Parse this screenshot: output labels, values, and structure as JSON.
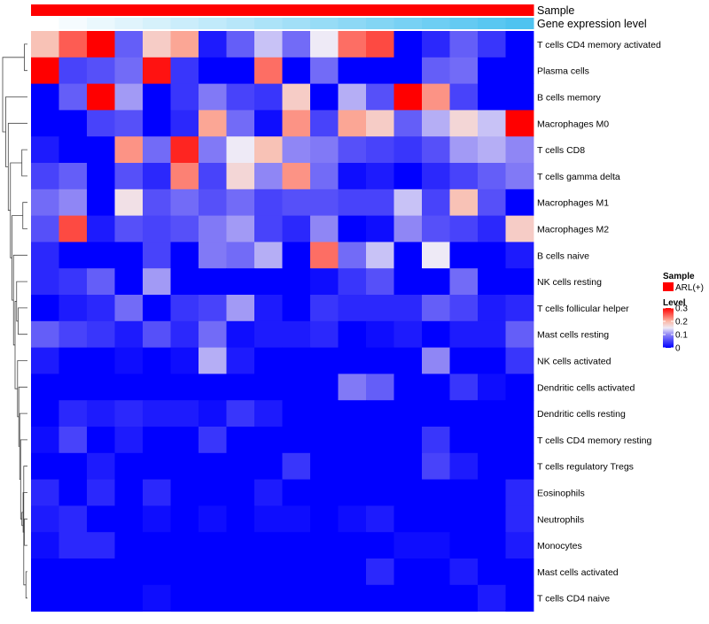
{
  "chart_data": {
    "type": "heatmap",
    "annotations": [
      {
        "label": "Sample",
        "kind": "categorical",
        "color": "#ff0000"
      },
      {
        "label": "Gene expression level",
        "kind": "continuous",
        "from_color": "#ffffff",
        "to_color": "#4fc3f0"
      }
    ],
    "rows": [
      "T cells CD4 memory activated",
      "Plasma cells",
      "B cells memory",
      "Macrophages M0",
      "T cells CD8",
      "T cells gamma delta",
      "Macrophages M1",
      "Macrophages M2",
      "B cells naive",
      "NK cells resting",
      "T cells follicular helper",
      "Mast cells resting",
      "NK cells activated",
      "Dendritic cells activated",
      "Dendritic cells resting",
      "T cells CD4 memory resting",
      "T cells regulatory  Tregs",
      "Eosinophils",
      "Neutrophils",
      "Monocytes",
      "Mast cells activated",
      "T cells CD4 naive"
    ],
    "columns": 18,
    "values": [
      [
        0.19,
        0.25,
        0.3,
        0.07,
        0.18,
        0.21,
        0.02,
        0.07,
        0.13,
        0.08,
        0.15,
        0.24,
        0.26,
        0.0,
        0.03,
        0.07,
        0.04,
        0.0
      ],
      [
        0.3,
        0.05,
        0.06,
        0.08,
        0.29,
        0.04,
        0.0,
        0.0,
        0.24,
        0.0,
        0.08,
        0.0,
        0.0,
        0.0,
        0.07,
        0.08,
        0.0,
        0.0
      ],
      [
        0.0,
        0.07,
        0.3,
        0.11,
        0.0,
        0.04,
        0.09,
        0.05,
        0.04,
        0.18,
        0.0,
        0.12,
        0.06,
        0.3,
        0.22,
        0.05,
        0.0,
        0.0
      ],
      [
        0.0,
        0.0,
        0.05,
        0.06,
        0.0,
        0.03,
        0.21,
        0.08,
        0.01,
        0.22,
        0.05,
        0.21,
        0.18,
        0.07,
        0.12,
        0.17,
        0.13,
        0.3
      ],
      [
        0.02,
        0.0,
        0.0,
        0.22,
        0.08,
        0.28,
        0.09,
        0.15,
        0.19,
        0.1,
        0.09,
        0.06,
        0.05,
        0.04,
        0.06,
        0.11,
        0.12,
        0.1
      ],
      [
        0.05,
        0.07,
        0.0,
        0.06,
        0.03,
        0.23,
        0.05,
        0.17,
        0.1,
        0.22,
        0.08,
        0.01,
        0.02,
        0.0,
        0.03,
        0.05,
        0.07,
        0.09
      ],
      [
        0.08,
        0.1,
        0.0,
        0.16,
        0.06,
        0.08,
        0.06,
        0.08,
        0.05,
        0.06,
        0.06,
        0.05,
        0.05,
        0.13,
        0.05,
        0.19,
        0.06,
        0.0
      ],
      [
        0.06,
        0.26,
        0.02,
        0.06,
        0.05,
        0.06,
        0.09,
        0.11,
        0.05,
        0.03,
        0.1,
        0.0,
        0.01,
        0.1,
        0.06,
        0.05,
        0.03,
        0.18
      ],
      [
        0.03,
        0.0,
        0.0,
        0.0,
        0.05,
        0.0,
        0.09,
        0.08,
        0.12,
        0.0,
        0.24,
        0.08,
        0.13,
        0.0,
        0.15,
        0.0,
        0.0,
        0.02
      ],
      [
        0.03,
        0.04,
        0.07,
        0.0,
        0.11,
        0.0,
        0.0,
        0.0,
        0.0,
        0.0,
        0.01,
        0.04,
        0.06,
        0.0,
        0.0,
        0.08,
        0.0,
        0.0
      ],
      [
        0.0,
        0.02,
        0.03,
        0.08,
        0.0,
        0.04,
        0.05,
        0.11,
        0.02,
        0.0,
        0.04,
        0.03,
        0.03,
        0.03,
        0.07,
        0.05,
        0.02,
        0.03
      ],
      [
        0.07,
        0.05,
        0.04,
        0.02,
        0.06,
        0.03,
        0.08,
        0.01,
        0.02,
        0.02,
        0.03,
        0.0,
        0.01,
        0.02,
        0.0,
        0.02,
        0.02,
        0.07
      ],
      [
        0.02,
        0.0,
        0.0,
        0.01,
        0.0,
        0.01,
        0.12,
        0.02,
        0.0,
        0.0,
        0.0,
        0.0,
        0.0,
        0.0,
        0.1,
        0.0,
        0.0,
        0.04
      ],
      [
        0.0,
        0.0,
        0.0,
        0.0,
        0.0,
        0.0,
        0.0,
        0.0,
        0.0,
        0.0,
        0.0,
        0.09,
        0.07,
        0.0,
        0.0,
        0.04,
        0.01,
        0.0
      ],
      [
        0.0,
        0.03,
        0.02,
        0.03,
        0.02,
        0.02,
        0.01,
        0.04,
        0.02,
        0.0,
        0.0,
        0.0,
        0.0,
        0.0,
        0.0,
        0.0,
        0.0,
        0.0
      ],
      [
        0.01,
        0.05,
        0.0,
        0.02,
        0.0,
        0.0,
        0.04,
        0.0,
        0.0,
        0.0,
        0.0,
        0.0,
        0.0,
        0.0,
        0.04,
        0.0,
        0.0,
        0.0
      ],
      [
        0.0,
        0.0,
        0.02,
        0.0,
        0.0,
        0.0,
        0.0,
        0.0,
        0.0,
        0.04,
        0.0,
        0.0,
        0.0,
        0.0,
        0.05,
        0.02,
        0.0,
        0.0
      ],
      [
        0.03,
        0.0,
        0.03,
        0.0,
        0.03,
        0.0,
        0.0,
        0.0,
        0.02,
        0.0,
        0.0,
        0.0,
        0.0,
        0.0,
        0.0,
        0.0,
        0.0,
        0.03
      ],
      [
        0.02,
        0.03,
        0.0,
        0.0,
        0.01,
        0.0,
        0.01,
        0.0,
        0.01,
        0.01,
        0.0,
        0.01,
        0.02,
        0.0,
        0.0,
        0.0,
        0.0,
        0.03
      ],
      [
        0.01,
        0.03,
        0.03,
        0.0,
        0.0,
        0.0,
        0.0,
        0.0,
        0.0,
        0.0,
        0.0,
        0.0,
        0.0,
        0.01,
        0.01,
        0.0,
        0.0,
        0.02
      ],
      [
        0.0,
        0.0,
        0.0,
        0.0,
        0.0,
        0.0,
        0.0,
        0.0,
        0.0,
        0.0,
        0.0,
        0.0,
        0.03,
        0.0,
        0.0,
        0.02,
        0.0,
        0.0
      ],
      [
        0.0,
        0.0,
        0.0,
        0.0,
        0.01,
        0.0,
        0.0,
        0.0,
        0.0,
        0.0,
        0.0,
        0.0,
        0.0,
        0.0,
        0.0,
        0.0,
        0.02,
        0.0
      ]
    ],
    "color_scale": {
      "stops": [
        [
          0,
          "#0000ff"
        ],
        [
          0.1,
          "#8f86f5"
        ],
        [
          0.15,
          "#eeeaf6"
        ],
        [
          0.2,
          "#fbb8a6"
        ],
        [
          0.3,
          "#ff0000"
        ]
      ],
      "domain": [
        0,
        0.3
      ]
    },
    "legend": {
      "position": "right",
      "sample_title": "Sample",
      "sample_entries": [
        {
          "label": "ARL(+)",
          "color": "#ff0000"
        }
      ],
      "level_title": "Level",
      "level_ticks": [
        {
          "value": 0.3,
          "label": "0.3"
        },
        {
          "value": 0.2,
          "label": "0.2"
        },
        {
          "value": 0.1,
          "label": "0.1"
        },
        {
          "value": 0,
          "label": "0"
        }
      ]
    },
    "dendrogram": {
      "side": "left",
      "leaf_order": [
        0,
        1,
        2,
        3,
        4,
        5,
        6,
        7,
        8,
        9,
        10,
        11,
        12,
        13,
        14,
        15,
        16,
        17,
        18,
        19,
        20,
        21
      ],
      "merges": [
        [
          0,
          1,
          0.1
        ],
        [
          6,
          7,
          0.15
        ],
        [
          4,
          5,
          0.18
        ],
        [
          20,
          21,
          0.05
        ],
        [
          18,
          19,
          0.1
        ],
        [
          16,
          -4,
          0.12
        ],
        [
          17,
          -5,
          0.14
        ],
        [
          -6,
          -7,
          0.18
        ],
        [
          15,
          -8,
          0.22
        ],
        [
          14,
          -9,
          0.25
        ],
        [
          13,
          -10,
          0.28
        ],
        [
          12,
          -11,
          0.32
        ],
        [
          10,
          11,
          0.3
        ],
        [
          9,
          -13,
          0.35
        ],
        [
          -12,
          -14,
          0.4
        ],
        [
          8,
          -15,
          0.45
        ],
        [
          -2,
          -16,
          0.5
        ],
        [
          -3,
          -17,
          0.55
        ],
        [
          3,
          -18,
          0.62
        ],
        [
          2,
          -19,
          0.7
        ],
        [
          -1,
          -20,
          0.8
        ]
      ]
    }
  }
}
